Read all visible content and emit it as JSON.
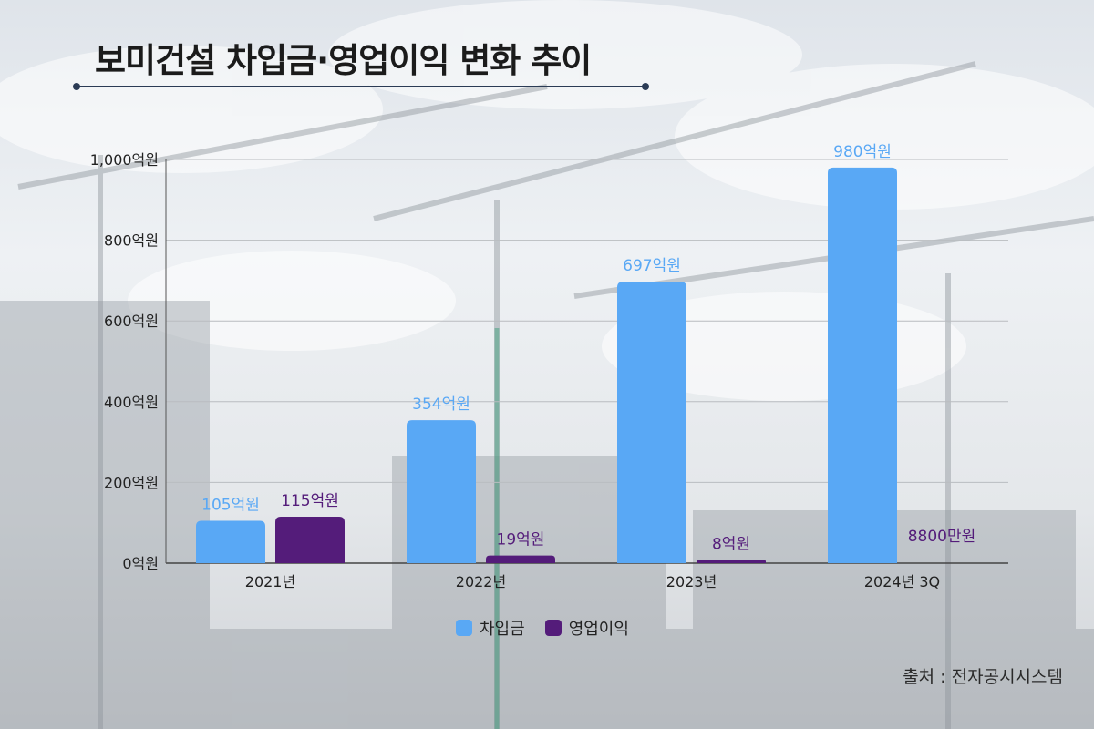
{
  "title": "보미건설 차입금·영업이익 변화 추이",
  "source": "출처 : 전자공시시스템",
  "colors": {
    "borrowings": "#59a8f5",
    "operating_profit": "#541c7a"
  },
  "chart_data": {
    "type": "bar",
    "categories": [
      "2021년",
      "2022년",
      "2023년",
      "2024년 3Q"
    ],
    "ylim": [
      0,
      1000
    ],
    "y_ticks": [
      {
        "value": 0,
        "label": "0억원"
      },
      {
        "value": 200,
        "label": "200억원"
      },
      {
        "value": 400,
        "label": "400억원"
      },
      {
        "value": 600,
        "label": "600억원"
      },
      {
        "value": 800,
        "label": "800억원"
      },
      {
        "value": 1000,
        "label": "1,000억원"
      }
    ],
    "grid": true,
    "legend_position": "bottom",
    "series": [
      {
        "name": "차입금",
        "color": "#59a8f5",
        "values": [
          105,
          354,
          697,
          980
        ],
        "labels": [
          "105억원",
          "354억원",
          "697억원",
          "980억원"
        ]
      },
      {
        "name": "영업이익",
        "color": "#541c7a",
        "values": [
          115,
          19,
          8,
          0.88
        ],
        "labels": [
          "115억원",
          "19억원",
          "8억원",
          "8800만원"
        ]
      }
    ]
  }
}
